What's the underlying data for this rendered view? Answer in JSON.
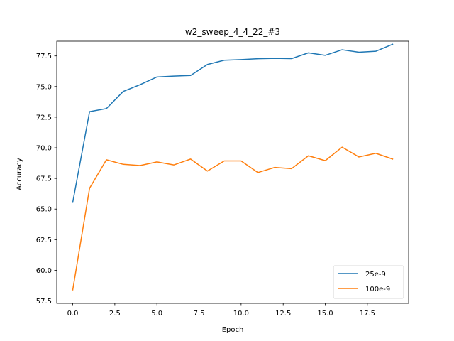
{
  "chart_data": {
    "type": "line",
    "title": "w2_sweep_4_4_22_#3",
    "xlabel": "Epoch",
    "ylabel": "Accuracy",
    "xlim": [
      -0.95,
      19.95
    ],
    "ylim": [
      57.3,
      78.7
    ],
    "xticks": [
      0,
      2.5,
      5,
      7.5,
      10,
      12.5,
      15,
      17.5
    ],
    "xtick_labels": [
      "0.0",
      "2.5",
      "5.0",
      "7.5",
      "10.0",
      "12.5",
      "15.0",
      "17.5"
    ],
    "yticks": [
      57.5,
      60,
      62.5,
      65,
      67.5,
      70,
      72.5,
      75,
      77.5
    ],
    "ytick_labels": [
      "57.5",
      "60.0",
      "62.5",
      "65.0",
      "67.5",
      "70.0",
      "72.5",
      "75.0",
      "77.5"
    ],
    "grid": false,
    "legend_position": "lower-right",
    "x": [
      0,
      1,
      2,
      3,
      4,
      5,
      6,
      7,
      8,
      9,
      10,
      11,
      12,
      13,
      14,
      15,
      16,
      17,
      18,
      19
    ],
    "series": [
      {
        "name": "25e-9",
        "color": "#1f77b4",
        "values": [
          65.55,
          72.95,
          73.2,
          74.6,
          75.15,
          75.78,
          75.85,
          75.9,
          76.8,
          77.15,
          77.2,
          77.27,
          77.3,
          77.28,
          77.75,
          77.55,
          78.0,
          77.8,
          77.88,
          78.45
        ]
      },
      {
        "name": "100e-9",
        "color": "#ff7f0e",
        "values": [
          58.4,
          66.7,
          69.02,
          68.65,
          68.55,
          68.85,
          68.6,
          69.08,
          68.1,
          68.93,
          68.93,
          67.98,
          68.4,
          68.3,
          69.35,
          68.95,
          70.05,
          69.25,
          69.55,
          69.08
        ]
      }
    ]
  }
}
